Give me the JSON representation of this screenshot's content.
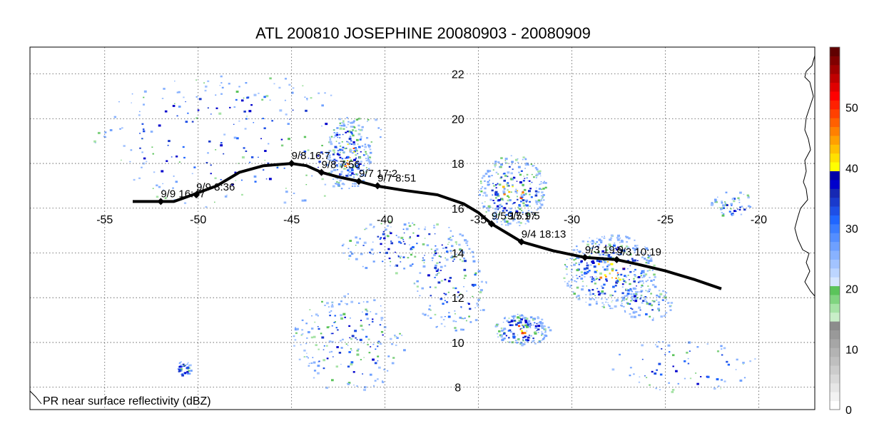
{
  "title": "ATL 200810 JOSEPHINE 20080903 - 20080909",
  "map_label": "PR near surface reflectivity (dBZ)",
  "lon_ticks": [
    {
      "value": -55,
      "label": "-55"
    },
    {
      "value": -50,
      "label": "-50"
    },
    {
      "value": -45,
      "label": "-45"
    },
    {
      "value": -40,
      "label": "-40"
    },
    {
      "value": -35,
      "label": "-35"
    },
    {
      "value": -30,
      "label": "-30"
    },
    {
      "value": -25,
      "label": "-25"
    },
    {
      "value": -20,
      "label": "-20"
    }
  ],
  "lat_ticks": [
    {
      "value": 8,
      "label": "8"
    },
    {
      "value": 10,
      "label": "10"
    },
    {
      "value": 12,
      "label": "12"
    },
    {
      "value": 14,
      "label": "14"
    },
    {
      "value": 16,
      "label": "16"
    },
    {
      "value": 18,
      "label": "18"
    },
    {
      "value": 20,
      "label": "20"
    },
    {
      "value": 22,
      "label": "22"
    }
  ],
  "extent": {
    "lon": [
      -59,
      -17
    ],
    "lat": [
      7,
      23.2
    ]
  },
  "track": [
    [
      -53.5,
      16.3
    ],
    [
      -51.3,
      16.3
    ],
    [
      -50.3,
      16.6
    ],
    [
      -49.0,
      17.0
    ],
    [
      -47.8,
      17.6
    ],
    [
      -46.5,
      17.9
    ],
    [
      -45.0,
      18.0
    ],
    [
      -44.2,
      17.9
    ],
    [
      -43.4,
      17.6
    ],
    [
      -42.5,
      17.4
    ],
    [
      -41.4,
      17.2
    ],
    [
      -40.5,
      17.0
    ],
    [
      -39.0,
      16.8
    ],
    [
      -37.2,
      16.6
    ],
    [
      -35.8,
      16.2
    ],
    [
      -35.0,
      15.8
    ],
    [
      -34.3,
      15.3
    ],
    [
      -33.3,
      14.8
    ],
    [
      -32.7,
      14.5
    ],
    [
      -31.0,
      14.1
    ],
    [
      -29.3,
      13.8
    ],
    [
      -27.6,
      13.7
    ],
    [
      -26.5,
      13.5
    ],
    [
      -25.0,
      13.2
    ],
    [
      -23.4,
      12.8
    ],
    [
      -22.0,
      12.4
    ]
  ],
  "track_points": [
    {
      "lon": -52.0,
      "lat": 16.3,
      "label": "9/9 16:47"
    },
    {
      "lon": -50.1,
      "lat": 16.6,
      "label": "9/9 8:36"
    },
    {
      "lon": -45.0,
      "lat": 18.0,
      "label": "9/8 16:7"
    },
    {
      "lon": -43.4,
      "lat": 17.6,
      "label": "9/8 7:56"
    },
    {
      "lon": -41.4,
      "lat": 17.2,
      "label": "9/7 17:2"
    },
    {
      "lon": -40.4,
      "lat": 17.0,
      "label": "9/7 8:51"
    },
    {
      "lon": -34.3,
      "lat": 15.3,
      "label": "9/5 17:17"
    },
    {
      "lon": -34.3,
      "lat": 15.3,
      "label": "9/5 9:5"
    },
    {
      "lon": -32.7,
      "lat": 14.5,
      "label": "9/4 18:13"
    },
    {
      "lon": -29.3,
      "lat": 13.8,
      "label": "9/3 19:9"
    },
    {
      "lon": -27.6,
      "lat": 13.7,
      "label": "9/3 10:19"
    }
  ],
  "colorbar": {
    "colors": [
      "#ffffff",
      "#f2f2f2",
      "#e6e6e6",
      "#d9d9d9",
      "#cccccc",
      "#bfbfbf",
      "#b3b3b3",
      "#a6a6a6",
      "#999999",
      "#8c8c8c",
      "#c9efc9",
      "#a6e3a6",
      "#80d480",
      "#5bc45b",
      "#d6e6ff",
      "#bcd5ff",
      "#a2c3ff",
      "#88b2ff",
      "#6ea0ff",
      "#548eff",
      "#3a7cff",
      "#2066ff",
      "#1e4fe6",
      "#1a3acc",
      "#1628b3",
      "#0000cc",
      "#0000a8",
      "#ffff00",
      "#ffe000",
      "#ffc000",
      "#ffa000",
      "#ff8000",
      "#ff6000",
      "#ff4000",
      "#ff2000",
      "#ff0000",
      "#e00000",
      "#c00000",
      "#a00000",
      "#800000",
      "#600000"
    ],
    "ticks": [
      {
        "value": 0,
        "label": "0"
      },
      {
        "value": 10,
        "label": "10"
      },
      {
        "value": 20,
        "label": "20"
      },
      {
        "value": 30,
        "label": "30"
      },
      {
        "value": 40,
        "label": "40"
      },
      {
        "value": 50,
        "label": "50"
      }
    ],
    "max": 60
  },
  "echo_clusters": [
    {
      "lon": -42.0,
      "lat": 18.4,
      "rx": 1.2,
      "ry": 1.6,
      "n": 260,
      "core": true
    },
    {
      "lon": -33.2,
      "lat": 16.8,
      "rx": 1.8,
      "ry": 1.6,
      "n": 300,
      "core": true
    },
    {
      "lon": -28.0,
      "lat": 13.2,
      "rx": 2.5,
      "ry": 1.7,
      "n": 420,
      "core": true
    },
    {
      "lon": -32.7,
      "lat": 10.6,
      "rx": 1.5,
      "ry": 0.7,
      "n": 180,
      "core": true
    },
    {
      "lon": -39.0,
      "lat": 14.3,
      "rx": 3.5,
      "ry": 1.2,
      "n": 160,
      "core": false
    },
    {
      "lon": -48.0,
      "lat": 19.0,
      "rx": 8.0,
      "ry": 3.0,
      "n": 260,
      "core": false
    },
    {
      "lon": -42.0,
      "lat": 10.0,
      "rx": 3.0,
      "ry": 2.2,
      "n": 200,
      "core": false
    },
    {
      "lon": -36.5,
      "lat": 12.5,
      "rx": 2.0,
      "ry": 2.0,
      "n": 130,
      "core": false
    },
    {
      "lon": -21.5,
      "lat": 16.2,
      "rx": 1.2,
      "ry": 0.6,
      "n": 60,
      "core": false
    },
    {
      "lon": -50.8,
      "lat": 8.8,
      "rx": 0.4,
      "ry": 0.4,
      "n": 40,
      "core": false
    },
    {
      "lon": -26.0,
      "lat": 11.8,
      "rx": 1.4,
      "ry": 0.8,
      "n": 80,
      "core": false
    },
    {
      "lon": -24.0,
      "lat": 9.0,
      "rx": 4.0,
      "ry": 1.2,
      "n": 70,
      "core": false
    }
  ]
}
